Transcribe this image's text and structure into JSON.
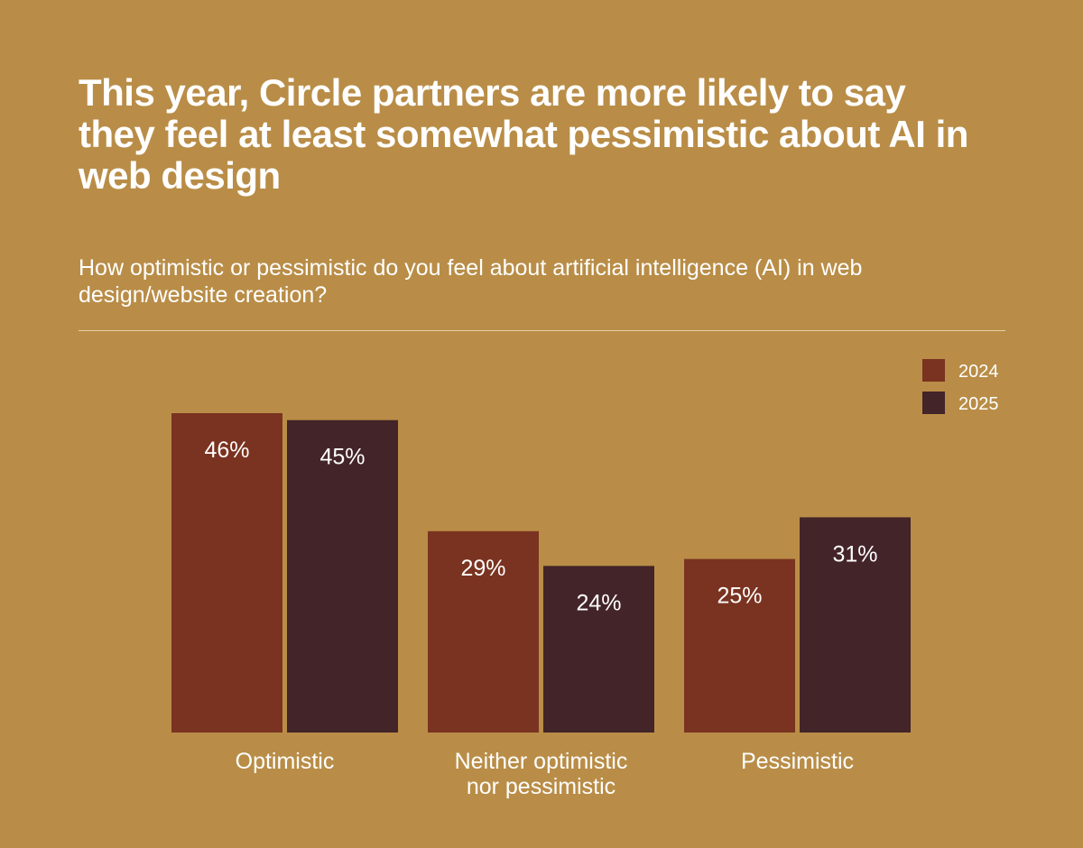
{
  "page": {
    "title": "This year, Circle partners are more likely to say they feel at least somewhat pessimistic about AI in web design",
    "subtitle": "How optimistic or pessimistic do you feel about artificial intelligence (AI) in web design/website creation?"
  },
  "colors": {
    "background": "#b98d47",
    "series_2024": "#7a3320",
    "series_2025": "#432429",
    "text": "#ffffff"
  },
  "chart_data": {
    "type": "bar",
    "categories": [
      [
        "Optimistic"
      ],
      [
        "Neither optimistic",
        "nor pessimistic"
      ],
      [
        "Pessimistic"
      ]
    ],
    "series": [
      {
        "name": "2024",
        "values": [
          46,
          29,
          25
        ],
        "labels": [
          "46%",
          "29%",
          "25%"
        ]
      },
      {
        "name": "2025",
        "values": [
          45,
          24,
          31
        ],
        "labels": [
          "45%",
          "24%",
          "31%"
        ]
      }
    ],
    "ylim": [
      0,
      46
    ],
    "grid": false,
    "legend": "top-right"
  }
}
